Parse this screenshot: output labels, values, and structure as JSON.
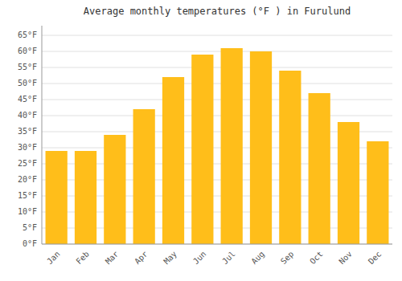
{
  "chart_data": {
    "type": "bar",
    "title": "Average monthly temperatures (°F ) in Furulund",
    "categories": [
      "Jan",
      "Feb",
      "Mar",
      "Apr",
      "May",
      "Jun",
      "Jul",
      "Aug",
      "Sep",
      "Oct",
      "Nov",
      "Dec"
    ],
    "values": [
      29,
      29,
      34,
      42,
      52,
      59,
      61,
      60,
      54,
      47,
      38,
      32
    ],
    "color": "#FFBE1A",
    "ylim": [
      0,
      68
    ],
    "yticks": [
      {
        "value": 0,
        "label": "0°F"
      },
      {
        "value": 5,
        "label": "5°F"
      },
      {
        "value": 10,
        "label": "10°F"
      },
      {
        "value": 15,
        "label": "15°F"
      },
      {
        "value": 20,
        "label": "20°F"
      },
      {
        "value": 25,
        "label": "25°F"
      },
      {
        "value": 30,
        "label": "30°F"
      },
      {
        "value": 35,
        "label": "35°F"
      },
      {
        "value": 40,
        "label": "40°F"
      },
      {
        "value": 45,
        "label": "45°F"
      },
      {
        "value": 50,
        "label": "50°F"
      },
      {
        "value": 55,
        "label": "55°F"
      },
      {
        "value": 60,
        "label": "60°F"
      },
      {
        "value": 65,
        "label": "65°F"
      }
    ],
    "grid": true
  }
}
